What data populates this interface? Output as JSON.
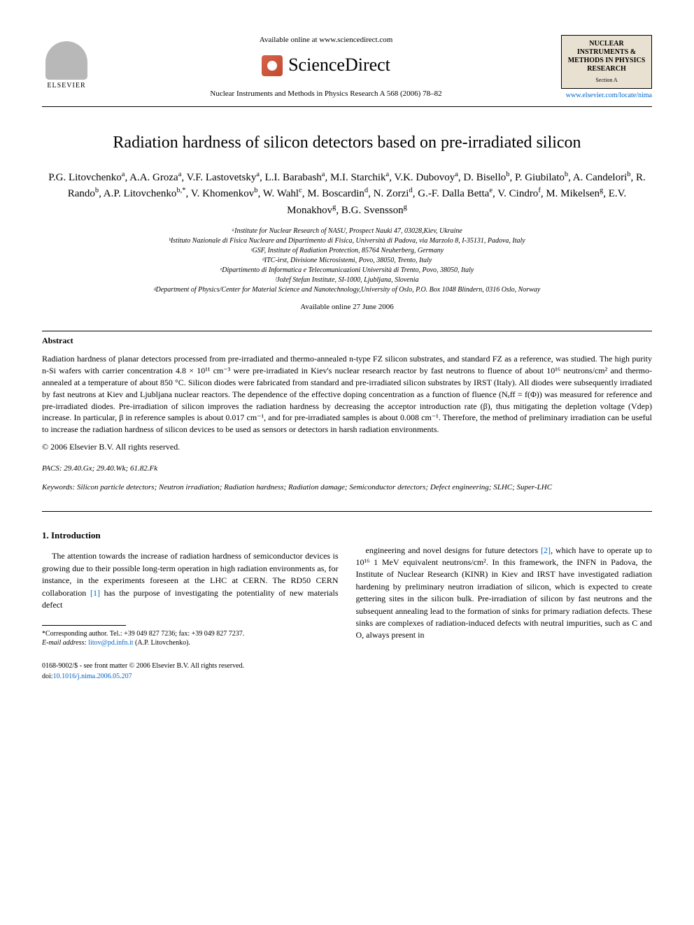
{
  "header": {
    "elsevier_label": "ELSEVIER",
    "available_online": "Available online at www.sciencedirect.com",
    "sciencedirect": "ScienceDirect",
    "journal_ref": "Nuclear Instruments and Methods in Physics Research A 568 (2006) 78–82",
    "journal_box": {
      "title": "NUCLEAR INSTRUMENTS & METHODS IN PHYSICS RESEARCH",
      "section": "Section A"
    },
    "journal_link": "www.elsevier.com/locate/nima"
  },
  "title": "Radiation hardness of silicon detectors based on pre-irradiated silicon",
  "authors_html": "P.G. Litovchenko<sup>a</sup>, A.A. Groza<sup>a</sup>, V.F. Lastovetsky<sup>a</sup>, L.I. Barabash<sup>a</sup>, M.I. Starchik<sup>a</sup>, V.K. Dubovoy<sup>a</sup>, D. Bisello<sup>b</sup>, P. Giubilato<sup>b</sup>, A. Candelori<sup>b</sup>, R. Rando<sup>b</sup>, A.P. Litovchenko<sup>b,*</sup>, V. Khomenkov<sup>b</sup>, W. Wahl<sup>c</sup>, M. Boscardin<sup>d</sup>, N. Zorzi<sup>d</sup>, G.-F. Dalla Betta<sup>e</sup>, V. Cindro<sup>f</sup>, M. Mikelsen<sup>g</sup>, E.V. Monakhov<sup>g</sup>, B.G. Svensson<sup>g</sup>",
  "affiliations": [
    "ᵃInstitute for Nuclear Research of NASU, Prospect Nauki 47, 03028,Kiev, Ukraine",
    "ᵇIstituto Nazionale di Fisica Nucleare and Dipartimento di Fisica, Università di Padova, via Marzolo 8, I-35131, Padova, Italy",
    "ᶜGSF, Institute of Radiation Protection, 85764 Neuherberg, Germany",
    "ᵈITC-irst, Divisione Microsistemi, Povo, 38050, Trento, Italy",
    "ᵉDipartimento di Informatica e Telecomunicazioni Università di Trento, Povo, 38050, Italy",
    "ᶠJožef Stefan Institute, SI-1000, Ljubljana, Slovenia",
    "ᵍDepartment of Physics/Center for Material Science and Nanotechnology,University of Oslo, P.O. Box 1048 Blindern, 0316 Oslo, Norway"
  ],
  "pub_date": "Available online 27 June 2006",
  "abstract": {
    "heading": "Abstract",
    "text": "Radiation hardness of planar detectors processed from pre-irradiated and thermo-annealed n-type FZ silicon substrates, and standard FZ as a reference, was studied. The high purity n-Si wafers with carrier concentration 4.8 × 10¹¹ cm⁻³ were pre-irradiated in Kiev's nuclear research reactor by fast neutrons to fluence of about 10¹⁶ neutrons/cm² and thermo-annealed at a temperature of about 850 °C. Silicon diodes were fabricated from standard and pre-irradiated silicon substrates by IRST (Italy). All diodes were subsequently irradiated by fast neutrons at Kiev and Ljubljana nuclear reactors. The dependence of the effective doping concentration as a function of fluence (Nₑff = f(Φ)) was measured for reference and pre-irradiated diodes. Pre-irradiation of silicon improves the radiation hardness by decreasing the acceptor introduction rate (β), thus mitigating the depletion voltage (Vdep) increase. In particular, β in reference samples is about 0.017 cm⁻¹, and for pre-irradiated samples is about 0.008 cm⁻¹. Therefore, the method of preliminary irradiation can be useful to increase the radiation hardness of silicon devices to be used as sensors or detectors in harsh radiation environments.",
    "copyright": "© 2006 Elsevier B.V. All rights reserved."
  },
  "pacs": "PACS: 29.40.Gx; 29.40.Wk; 61.82.Fk",
  "keywords": "Keywords: Silicon particle detectors; Neutron irradiation; Radiation hardness; Radiation damage; Semiconductor detectors; Defect engineering; SLHC; Super-LHC",
  "section1": {
    "heading": "1. Introduction",
    "col1": "The attention towards the increase of radiation hardness of semiconductor devices is growing due to their possible long-term operation in high radiation environments as, for instance, in the experiments foreseen at the LHC at CERN. The RD50 CERN collaboration [1] has the purpose of investigating the potentiality of new materials defect",
    "col2": "engineering and novel designs for future detectors [2], which have to operate up to 10¹⁶ 1 MeV equivalent neutrons/cm². In this framework, the INFN in Padova, the Institute of Nuclear Research (KINR) in Kiev and IRST have investigated radiation hardening by preliminary neutron irradiation of silicon, which is expected to create gettering sites in the silicon bulk. Pre-irradiation of silicon by fast neutrons and the subsequent annealing lead to the formation of sinks for primary radiation defects. These sinks are complexes of radiation-induced defects with neutral impurities, such as C and O, always present in"
  },
  "footnote": {
    "corresponding": "*Corresponding author. Tel.: +39 049 827 7236; fax: +39 049 827 7237.",
    "email_label": "E-mail address:",
    "email": "litov@pd.infn.it",
    "email_person": "(A.P. Litovchenko)."
  },
  "footer": {
    "line1": "0168-9002/$ - see front matter © 2006 Elsevier B.V. All rights reserved.",
    "doi_label": "doi:",
    "doi": "10.1016/j.nima.2006.05.207"
  },
  "colors": {
    "link": "#0066cc",
    "journal_box_bg": "#e8e0d0",
    "sd_icon": "#c44a2e"
  }
}
